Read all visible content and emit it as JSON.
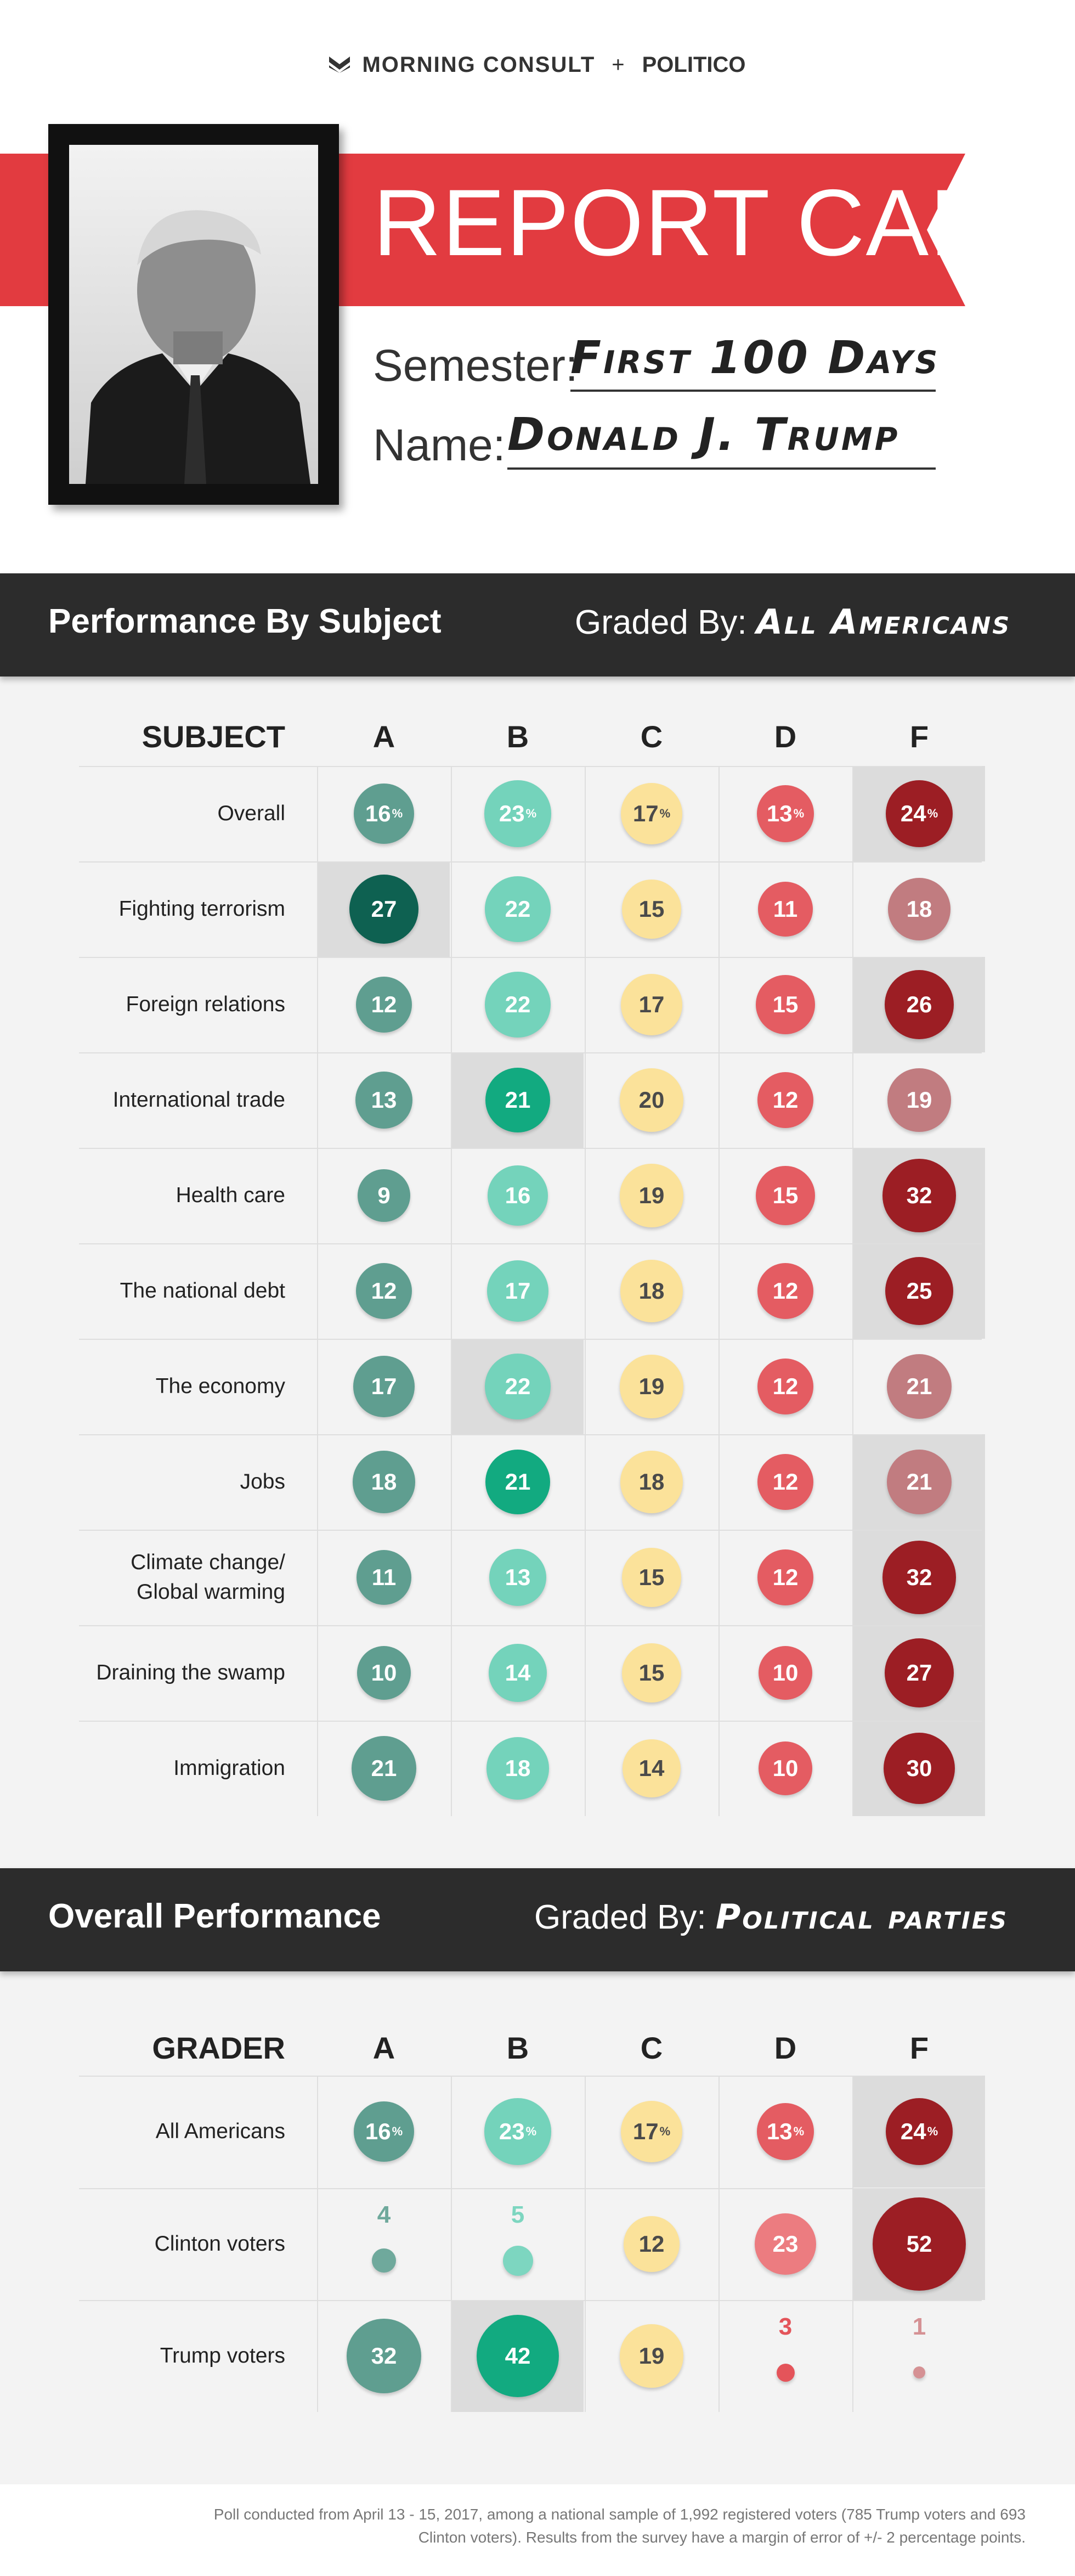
{
  "brand": {
    "logo_left": "MORNING CONSULT",
    "plus": "+",
    "logo_right": "POLITICO"
  },
  "header": {
    "title": "REPORT CARD",
    "semester_label": "Semester:",
    "semester_value": "First 100 Days",
    "name_label": "Name:",
    "name_value": "Donald J. Trump",
    "accent_color": "#e23b40"
  },
  "colors": {
    "A": {
      "scale": [
        "#a8cfc6",
        "#86bbaf",
        "#5f9e90",
        "#0e6151"
      ]
    },
    "B": {
      "scale": [
        "#a6e3d4",
        "#74d3bb",
        "#3fc2a0",
        "#12aa80"
      ]
    },
    "C": {
      "scale": [
        "#fdeeb5",
        "#fbe29a",
        "#f9d67c"
      ]
    },
    "D": {
      "scale": [
        "#f2a3a6",
        "#ec7c80",
        "#e45c62"
      ]
    },
    "F": {
      "scale": [
        "#d89ea1",
        "#c17c80",
        "#9c1e24",
        "#921b21"
      ]
    }
  },
  "section1": {
    "title": "Performance By Subject",
    "graded_by_label": "Graded By:",
    "graded_by_value": "All Americans",
    "row_header": "SUBJECT",
    "grades": [
      "A",
      "B",
      "C",
      "D",
      "F"
    ]
  },
  "section2": {
    "title": "Overall Performance",
    "graded_by_label": "Graded By:",
    "graded_by_value": "Political parties",
    "row_header": "GRADER",
    "grades": [
      "A",
      "B",
      "C",
      "D",
      "F"
    ]
  },
  "chart_data": [
    {
      "type": "table",
      "title": "Performance By Subject",
      "graded_by": "All Americans",
      "columns": [
        "A",
        "B",
        "C",
        "D",
        "F"
      ],
      "rows": [
        {
          "label": "Overall",
          "values": [
            16,
            23,
            17,
            13,
            24
          ],
          "percent": true,
          "highlight": 4
        },
        {
          "label": "Fighting terrorism",
          "values": [
            27,
            22,
            15,
            11,
            18
          ],
          "highlight": 0
        },
        {
          "label": "Foreign relations",
          "values": [
            12,
            22,
            17,
            15,
            26
          ],
          "highlight": 4
        },
        {
          "label": "International trade",
          "values": [
            13,
            21,
            20,
            12,
            19
          ],
          "highlight": 1
        },
        {
          "label": "Health care",
          "values": [
            9,
            16,
            19,
            15,
            32
          ],
          "highlight": 4
        },
        {
          "label": "The national debt",
          "values": [
            12,
            17,
            18,
            12,
            25
          ],
          "highlight": 4
        },
        {
          "label": "The economy",
          "values": [
            17,
            22,
            19,
            12,
            21
          ],
          "highlight": 1
        },
        {
          "label": "Jobs",
          "values": [
            18,
            21,
            18,
            12,
            21
          ],
          "highlight": 4
        },
        {
          "label": "Climate change/\nGlobal warming",
          "values": [
            11,
            13,
            15,
            12,
            32
          ],
          "highlight": 4
        },
        {
          "label": "Draining the swamp",
          "values": [
            10,
            14,
            15,
            10,
            27
          ],
          "highlight": 4
        },
        {
          "label": "Immigration",
          "values": [
            21,
            18,
            14,
            10,
            30
          ],
          "highlight": 4
        }
      ]
    },
    {
      "type": "table",
      "title": "Overall Performance",
      "graded_by": "Political parties",
      "columns": [
        "A",
        "B",
        "C",
        "D",
        "F"
      ],
      "rows": [
        {
          "label": "All Americans",
          "values": [
            16,
            23,
            17,
            13,
            24
          ],
          "percent": true,
          "highlight": 4
        },
        {
          "label": "Clinton voters",
          "values": [
            4,
            5,
            12,
            23,
            52
          ],
          "highlight": 4
        },
        {
          "label": "Trump voters",
          "values": [
            32,
            42,
            19,
            3,
            1
          ],
          "highlight": 1
        }
      ]
    }
  ],
  "footnote": "Poll conducted from April 13 - 15, 2017, among a national sample of 1,992 registered voters (785 Trump voters and 693 Clinton voters). Results from the survey have a margin of error of +/- 2 percentage points."
}
